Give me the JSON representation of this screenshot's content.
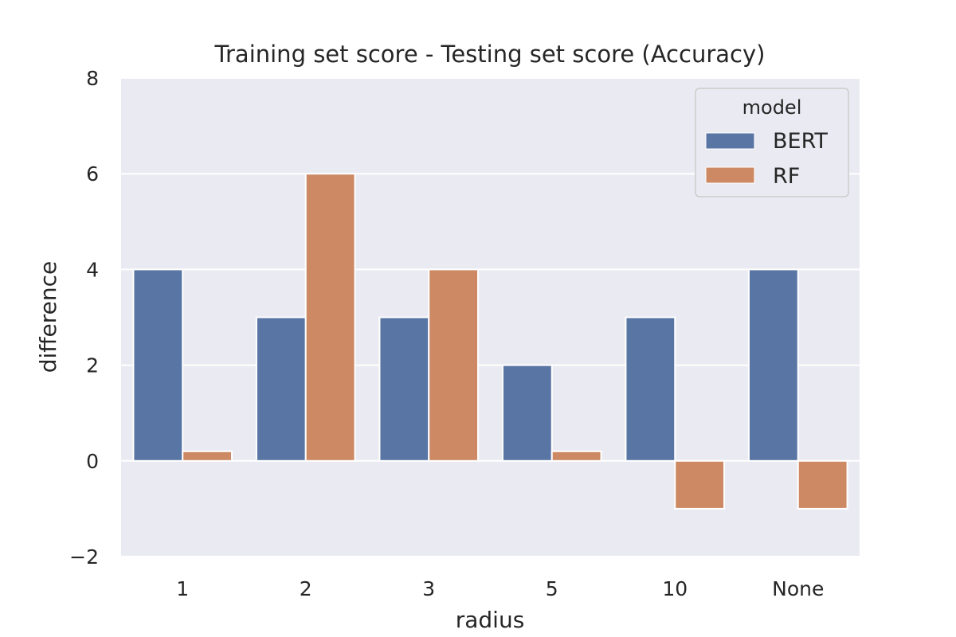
{
  "chart_data": {
    "type": "bar",
    "title": "Training set score - Testing set score (Accuracy)",
    "xlabel": "radius",
    "ylabel": "difference",
    "categories": [
      "1",
      "2",
      "3",
      "5",
      "10",
      "None"
    ],
    "series": [
      {
        "name": "BERT",
        "color": "#5875a4",
        "values": [
          4,
          3,
          3,
          2,
          3,
          4
        ]
      },
      {
        "name": "RF",
        "color": "#cc8963",
        "values": [
          0.2,
          6,
          4,
          0.2,
          -1,
          -1
        ]
      }
    ],
    "ylim": [
      -2,
      8
    ],
    "yticks": [
      -2,
      0,
      2,
      4,
      6,
      8
    ],
    "ytick_labels": [
      "−2",
      "0",
      "2",
      "4",
      "6",
      "8"
    ],
    "grid": true,
    "legend": {
      "title": "model",
      "position": "top-right"
    },
    "plot_background": "#eaeaf2"
  }
}
